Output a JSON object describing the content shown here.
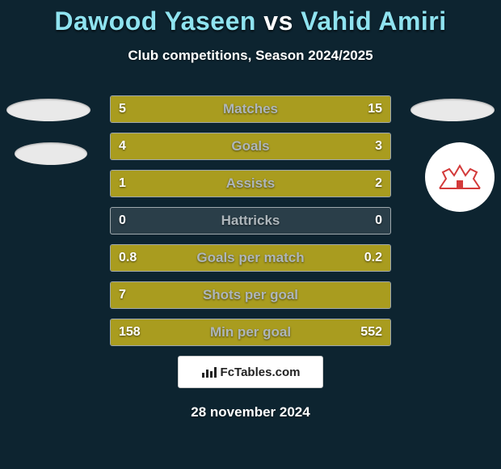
{
  "background_color": "#0d2430",
  "title": {
    "player1": "Dawood Yaseen",
    "vs": "vs",
    "player2": "Vahid Amiri",
    "color_p1": "#8fe3f0",
    "color_vs": "#ffffff",
    "color_p2": "#8fe3f0",
    "fontsize": 32
  },
  "subtitle": "Club competitions, Season 2024/2025",
  "player1_color": "#a99c1f",
  "player2_color": "#a99c1f",
  "row_border_color": "rgba(255,255,255,0.55)",
  "label_color": "#aeb6bb",
  "value_color": "#ffffff",
  "rows": [
    {
      "label": "Matches",
      "left": "5",
      "right": "15",
      "left_pct": 25,
      "right_pct": 75
    },
    {
      "label": "Goals",
      "left": "4",
      "right": "3",
      "left_pct": 57,
      "right_pct": 43
    },
    {
      "label": "Assists",
      "left": "1",
      "right": "2",
      "left_pct": 33,
      "right_pct": 67
    },
    {
      "label": "Hattricks",
      "left": "0",
      "right": "0",
      "left_pct": 0,
      "right_pct": 0
    },
    {
      "label": "Goals per match",
      "left": "0.8",
      "right": "0.2",
      "left_pct": 80,
      "right_pct": 20
    },
    {
      "label": "Shots per goal",
      "left": "7",
      "right": "",
      "left_pct": 100,
      "right_pct": 0
    },
    {
      "label": "Min per goal",
      "left": "158",
      "right": "552",
      "left_pct": 22,
      "right_pct": 78
    }
  ],
  "brand": "FcTables.com",
  "date": "28 november 2024",
  "right_badge_accent": "#d33a3a"
}
